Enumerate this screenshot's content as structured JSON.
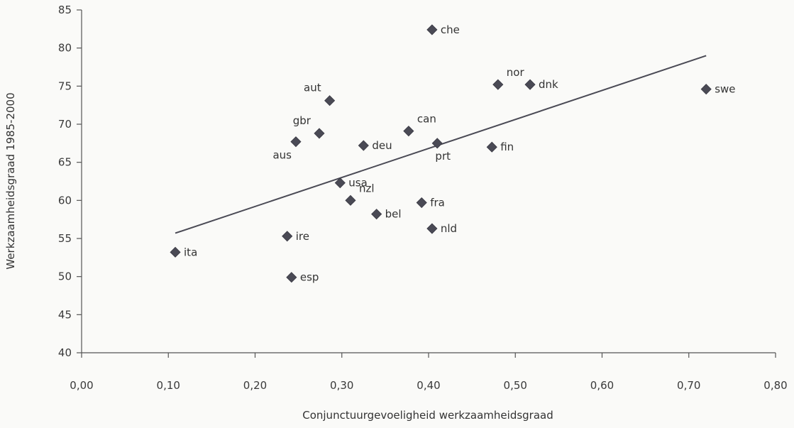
{
  "chart_data": {
    "type": "scatter",
    "title": "",
    "xlabel": "Conjunctuurgevoeligheid werkzaamheidsgraad",
    "ylabel": "Werkzaamheidsgraad 1985-2000",
    "xlim": [
      0.0,
      0.8
    ],
    "ylim": [
      40,
      85
    ],
    "x_ticks": [
      0.0,
      0.1,
      0.2,
      0.3,
      0.4,
      0.5,
      0.6,
      0.7,
      0.8
    ],
    "x_tick_labels": [
      "0,00",
      "0,10",
      "0,20",
      "0,30",
      "0,40",
      "0,50",
      "0,60",
      "0,70",
      "0,80"
    ],
    "y_ticks": [
      40,
      45,
      50,
      55,
      60,
      65,
      70,
      75,
      80,
      85
    ],
    "y_tick_labels": [
      "40",
      "45",
      "50",
      "55",
      "60",
      "65",
      "70",
      "75",
      "80",
      "85"
    ],
    "grid": false,
    "legend": "none",
    "marker": "diamond",
    "marker_color": "#4a4a55",
    "trendline": {
      "x": [
        0.108,
        0.72
      ],
      "y": [
        55.7,
        79.0
      ],
      "color": "#4a4a55"
    },
    "points": [
      {
        "label": "ita",
        "x": 0.108,
        "y": 53.2,
        "label_pos": "right"
      },
      {
        "label": "ire",
        "x": 0.237,
        "y": 55.3,
        "label_pos": "right"
      },
      {
        "label": "esp",
        "x": 0.242,
        "y": 49.9,
        "label_pos": "right"
      },
      {
        "label": "aus",
        "x": 0.247,
        "y": 67.7,
        "label_pos": "below-left"
      },
      {
        "label": "gbr",
        "x": 0.274,
        "y": 68.8,
        "label_pos": "above-left"
      },
      {
        "label": "aut",
        "x": 0.286,
        "y": 73.1,
        "label_pos": "above-left"
      },
      {
        "label": "usa",
        "x": 0.298,
        "y": 62.3,
        "label_pos": "right"
      },
      {
        "label": "nzl",
        "x": 0.31,
        "y": 60.0,
        "label_pos": "above-right"
      },
      {
        "label": "deu",
        "x": 0.325,
        "y": 67.2,
        "label_pos": "right"
      },
      {
        "label": "bel",
        "x": 0.34,
        "y": 58.2,
        "label_pos": "right"
      },
      {
        "label": "can",
        "x": 0.377,
        "y": 69.1,
        "label_pos": "above-right"
      },
      {
        "label": "fra",
        "x": 0.392,
        "y": 59.7,
        "label_pos": "right"
      },
      {
        "label": "che",
        "x": 0.404,
        "y": 82.4,
        "label_pos": "right"
      },
      {
        "label": "nld",
        "x": 0.404,
        "y": 56.3,
        "label_pos": "right"
      },
      {
        "label": "prt",
        "x": 0.41,
        "y": 67.5,
        "label_pos": "below"
      },
      {
        "label": "fin",
        "x": 0.473,
        "y": 67.0,
        "label_pos": "right"
      },
      {
        "label": "nor",
        "x": 0.48,
        "y": 75.2,
        "label_pos": "above-right"
      },
      {
        "label": "dnk",
        "x": 0.517,
        "y": 75.2,
        "label_pos": "right"
      },
      {
        "label": "swe",
        "x": 0.72,
        "y": 74.6,
        "label_pos": "right"
      }
    ]
  }
}
